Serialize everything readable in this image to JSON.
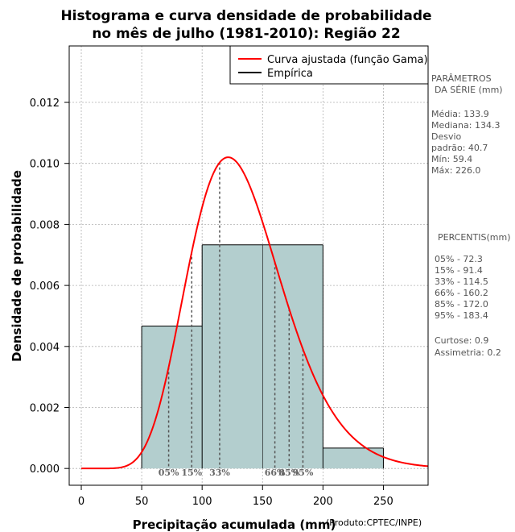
{
  "chart_data": {
    "type": "histogram",
    "title_lines": [
      "Histograma e curva densidade de probabilidade",
      "no mês de julho (1981-2010): Região 22"
    ],
    "xlabel": "Precipitação acumulada (mm)",
    "ylabel": "Densidade de probabilidade",
    "credit": "(Produto:CPTEC/INPE)",
    "xlim": [
      -10,
      287
    ],
    "ylim": [
      -0.00055,
      0.01385
    ],
    "x_ticks": [
      0,
      50,
      100,
      150,
      200,
      250
    ],
    "y_ticks": [
      0.0,
      0.002,
      0.004,
      0.006,
      0.008,
      0.01,
      0.012
    ],
    "y_tick_labels": [
      "0.000",
      "0.002",
      "0.004",
      "0.006",
      "0.008",
      "0.010",
      "0.012"
    ],
    "grid": true,
    "bins": [
      {
        "start": 50,
        "end": 100,
        "density": 0.00467
      },
      {
        "start": 100,
        "end": 200,
        "density": 0.00733
      },
      {
        "start": 200,
        "end": 250,
        "density": 0.00067
      }
    ],
    "histogram_inner_lines_x": [
      150
    ],
    "fitted_curve": {
      "name": "Curva ajustada (função Gama)",
      "color": "#ff0000",
      "mean": 133.9,
      "sd": 40.7
    },
    "empirical": {
      "name": "Empírica",
      "color": "#000000"
    },
    "percentile_lines": [
      {
        "label": "05%",
        "x": 72.3
      },
      {
        "label": "15%",
        "x": 91.4
      },
      {
        "label": "33%",
        "x": 114.5
      },
      {
        "label": "66%",
        "x": 160.2
      },
      {
        "label": "85%",
        "x": 172.0
      },
      {
        "label": "95%",
        "x": 183.4
      }
    ],
    "legend_position": "top-right",
    "bar_color": "#b3cece"
  },
  "side_panel": {
    "params_title_1": "PARÂMETROS",
    "params_title_2": "DA SÉRIE (mm)",
    "media": "Média:  133.9",
    "mediana": "Mediana:  134.3",
    "desvio_1": "Desvio",
    "desvio_2": "padrão:  40.7",
    "min": "Mín:  59.4",
    "max": "Máx:  226.0",
    "percentis_title": "PERCENTIS(mm)",
    "p05": "05% -  72.3",
    "p15": "15% -  91.4",
    "p33": "33% -  114.5",
    "p66": "66% -  160.2",
    "p85": "85% -  172.0",
    "p95": "95% -  183.4",
    "curtose": "Curtose:  0.9",
    "assimetria": "Assimetria:  0.2"
  }
}
